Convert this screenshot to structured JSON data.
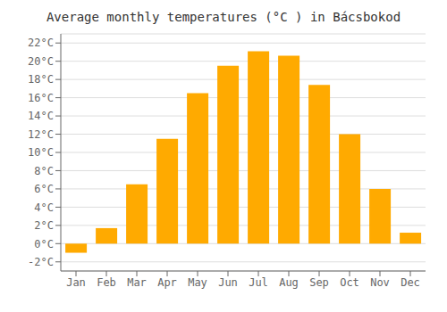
{
  "chart_data": {
    "type": "bar",
    "title": "Average monthly temperatures (°C ) in Bácsbokod",
    "categories": [
      "Jan",
      "Feb",
      "Mar",
      "Apr",
      "May",
      "Jun",
      "Jul",
      "Aug",
      "Sep",
      "Oct",
      "Nov",
      "Dec"
    ],
    "values": [
      -1.0,
      1.7,
      6.5,
      11.5,
      16.5,
      19.5,
      21.1,
      20.6,
      17.4,
      12.0,
      6.0,
      1.2
    ],
    "color": "#FFAA00",
    "ylim": [
      -3,
      23
    ],
    "yticks": [
      {
        "value": -2,
        "label": "-2°C"
      },
      {
        "value": 0,
        "label": "0°C"
      },
      {
        "value": 2,
        "label": "2°C"
      },
      {
        "value": 4,
        "label": "4°C"
      },
      {
        "value": 6,
        "label": "6°C"
      },
      {
        "value": 8,
        "label": "8°C"
      },
      {
        "value": 10,
        "label": "10°C"
      },
      {
        "value": 12,
        "label": "12°C"
      },
      {
        "value": 14,
        "label": "14°C"
      },
      {
        "value": 16,
        "label": "16°C"
      },
      {
        "value": 18,
        "label": "18°C"
      },
      {
        "value": 20,
        "label": "20°C"
      },
      {
        "value": 22,
        "label": "22°C"
      }
    ],
    "grid": true
  }
}
